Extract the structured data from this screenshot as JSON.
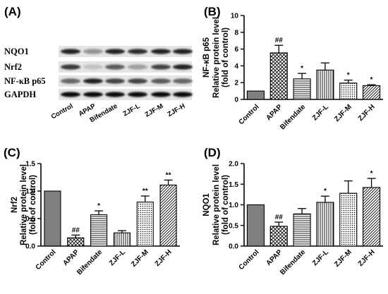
{
  "panel_a": {
    "letter": "(A)",
    "rows": [
      "NQO1",
      "Nrf2",
      "NF-κB p65",
      "GAPDH"
    ],
    "lanes": [
      "Control",
      "APAP",
      "Bifendate",
      "ZJF-L",
      "ZJF-M",
      "ZJF-H"
    ]
  },
  "chart_data": [
    {
      "panel": "(B)",
      "type": "bar",
      "categories": [
        "Control",
        "APAP",
        "Bifendate",
        "ZJF-L",
        "ZJF-M",
        "ZJF-H"
      ],
      "values": [
        1.0,
        5.55,
        2.45,
        3.5,
        1.95,
        1.65
      ],
      "errors": [
        0.0,
        0.9,
        0.65,
        0.85,
        0.35,
        0.1
      ],
      "significance": [
        "",
        "##",
        "*",
        "",
        "*",
        "*"
      ],
      "ylabel_lines": [
        "NF-κB p65",
        "Relative protein level",
        "(fold of control)"
      ],
      "ylim": [
        0,
        10
      ],
      "yticks": [
        0,
        2,
        4,
        6,
        8,
        10
      ],
      "colors": [
        "#808080",
        "#000000",
        "#000000",
        "#000000",
        "#000000",
        "#000000"
      ]
    },
    {
      "panel": "(C)",
      "type": "bar",
      "categories": [
        "Control",
        "APAP",
        "Bifendate",
        "ZJF-L",
        "ZJF-M",
        "ZJF-H"
      ],
      "values": [
        1.0,
        0.15,
        0.57,
        0.24,
        0.8,
        1.11
      ],
      "errors": [
        0.0,
        0.05,
        0.07,
        0.04,
        0.11,
        0.09
      ],
      "significance": [
        "",
        "##",
        "*",
        "",
        "**",
        "**"
      ],
      "ylabel_lines": [
        "Nrf2",
        "Relative protein level",
        "(fold of control)"
      ],
      "ylim": [
        0,
        1.5
      ],
      "yticks": [
        "0.0",
        "0.5",
        "1.0",
        "1.5"
      ],
      "colors": [
        "#808080",
        "#000000",
        "#000000",
        "#000000",
        "#000000",
        "#000000"
      ]
    },
    {
      "panel": "(D)",
      "type": "bar",
      "categories": [
        "Control",
        "APAP",
        "Bifendate",
        "ZJF-L",
        "ZJF-M",
        "ZJF-H"
      ],
      "values": [
        1.0,
        0.48,
        0.78,
        1.06,
        1.28,
        1.42
      ],
      "errors": [
        0.0,
        0.1,
        0.13,
        0.15,
        0.3,
        0.22
      ],
      "significance": [
        "",
        "##",
        "",
        "*",
        "",
        "*"
      ],
      "ylabel_lines": [
        "NQO1",
        "Relative protein level",
        "(fold of control)"
      ],
      "ylim": [
        0,
        2.0
      ],
      "yticks": [
        "0.0",
        "0.5",
        "1.0",
        "1.5",
        "2.0"
      ],
      "colors": [
        "#808080",
        "#000000",
        "#000000",
        "#000000",
        "#000000",
        "#000000"
      ]
    }
  ]
}
